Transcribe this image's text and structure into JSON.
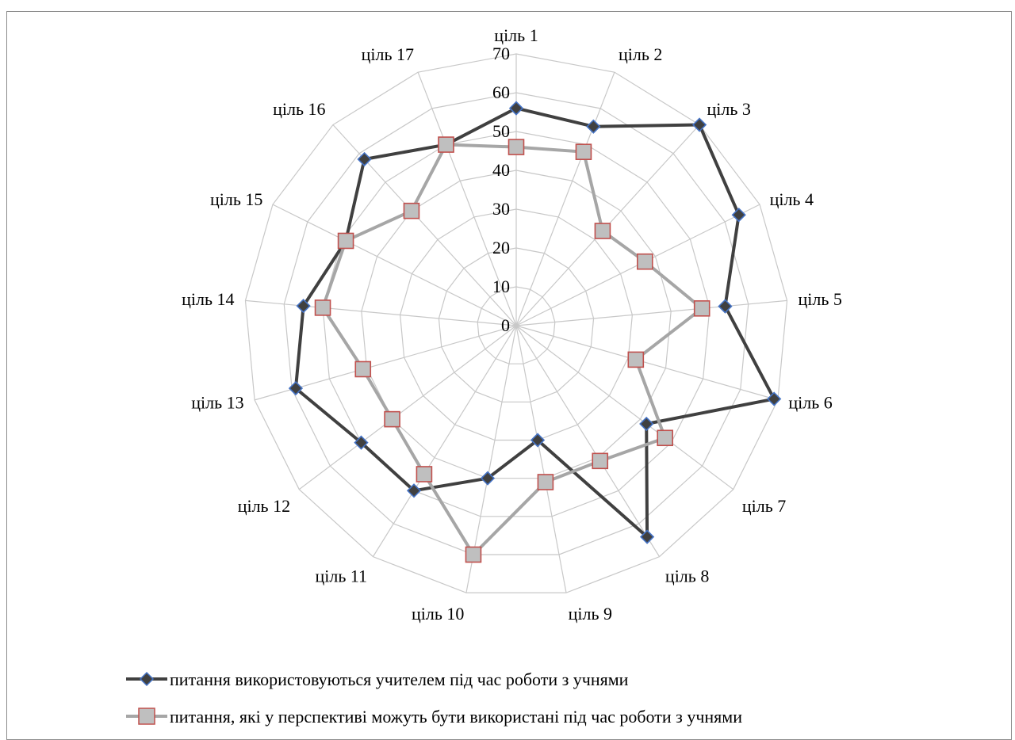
{
  "chart_data": {
    "type": "radar",
    "categories": [
      "ціль 1",
      "ціль 2",
      "ціль 3",
      "ціль 4",
      "ціль 5",
      "ціль 6",
      "ціль 7",
      "ціль 8",
      "ціль 9",
      "ціль 10",
      "ціль 11",
      "ціль 12",
      "ціль 13",
      "ціль 14",
      "ціль 15",
      "ціль 16",
      "ціль 17"
    ],
    "rlim": [
      0,
      70
    ],
    "ticks": [
      0,
      10,
      20,
      30,
      40,
      50,
      60,
      70
    ],
    "grid": true,
    "legend_position": "bottom",
    "series": [
      {
        "name": "питання використовуються учителем під час роботи з учнями",
        "color": "#404040",
        "marker": "diamond",
        "marker_fill": "#404040",
        "marker_edge": "#4472c4",
        "values": [
          56,
          55,
          70,
          64,
          54,
          69,
          42,
          64,
          30,
          40,
          50,
          50,
          59,
          55,
          49,
          58,
          50
        ]
      },
      {
        "name": "питання, які у перспективі можуть бути використані під час роботи з учнями",
        "color": "#a6a6a6",
        "marker": "square",
        "marker_fill": "#bfbfbf",
        "marker_edge": "#c0504d",
        "values": [
          46,
          48,
          33,
          37,
          48,
          32,
          48,
          41,
          41,
          60,
          45,
          40,
          41,
          50,
          49,
          40,
          50
        ]
      }
    ]
  }
}
